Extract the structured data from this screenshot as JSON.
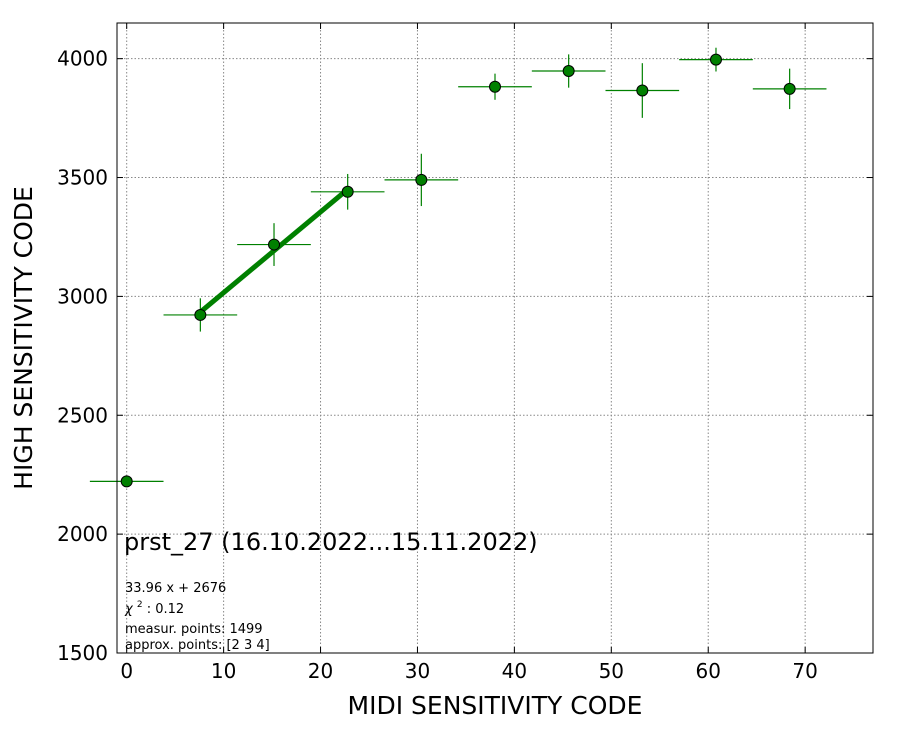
{
  "chart_data": {
    "type": "scatter",
    "xlabel": "MIDI SENSITIVITY CODE",
    "ylabel": "HIGH SENSITIVITY CODE",
    "xlim": [
      -1,
      77
    ],
    "ylim": [
      1500,
      4150
    ],
    "x_ticks": [
      0,
      10,
      20,
      30,
      40,
      50,
      60,
      70
    ],
    "y_ticks": [
      1500,
      2000,
      2500,
      3000,
      3500,
      4000
    ],
    "grid": true,
    "marker_color": "#008000",
    "errorbar_color": "#008000",
    "fit_color": "#008000",
    "points": [
      {
        "x": 0,
        "y": 2222,
        "xerr": 3.8,
        "yerr": 0
      },
      {
        "x": 7.6,
        "y": 2922,
        "xerr": 3.8,
        "yerr": 70
      },
      {
        "x": 15.2,
        "y": 3218,
        "xerr": 3.8,
        "yerr": 90
      },
      {
        "x": 22.8,
        "y": 3440,
        "xerr": 3.8,
        "yerr": 75
      },
      {
        "x": 30.4,
        "y": 3490,
        "xerr": 3.8,
        "yerr": 110
      },
      {
        "x": 38.0,
        "y": 3882,
        "xerr": 3.8,
        "yerr": 55
      },
      {
        "x": 45.6,
        "y": 3948,
        "xerr": 3.8,
        "yerr": 70
      },
      {
        "x": 53.2,
        "y": 3866,
        "xerr": 3.8,
        "yerr": 115
      },
      {
        "x": 60.8,
        "y": 3996,
        "xerr": 3.8,
        "yerr": 50
      },
      {
        "x": 68.4,
        "y": 3873,
        "xerr": 3.8,
        "yerr": 85
      }
    ],
    "fit": {
      "slope": 33.96,
      "intercept": 2676,
      "x_range": [
        7.6,
        22.8
      ]
    },
    "annotations": {
      "title_note": "prst_27 (16.10.2022...15.11.2022)",
      "equation": "33.96 x + 2676",
      "chi2_label": "χ",
      "chi2_sup": "2",
      "chi2_value": ": 0.12",
      "measur_points": "measur. points: 1499",
      "approx_points": "approx. points: [2 3 4]"
    }
  }
}
